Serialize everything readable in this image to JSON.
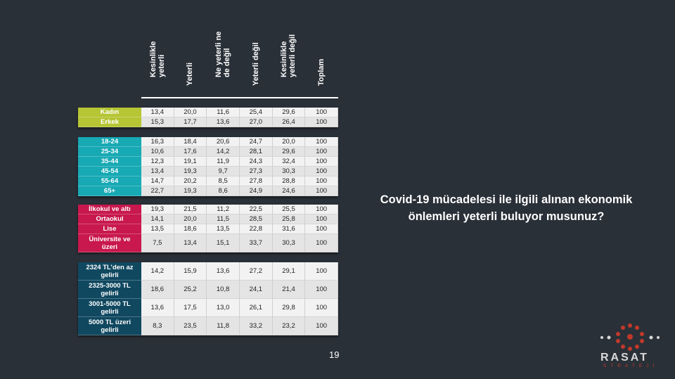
{
  "chart_data": {
    "type": "table",
    "title": "Covid-19 mücadelesi ile ilgili alınan ekonomik önlemleri yeterli buluyor musunuz?",
    "columns": [
      "Kesinlikle\nyeterli",
      "Yeterli",
      "Ne yeterli ne\nde değil",
      "Yeterli değil",
      "Kesinlikle\nyeterli değil",
      "Toplam"
    ],
    "groups": [
      {
        "color": "#b5c534",
        "rows": [
          {
            "label": "Kadın",
            "values": [
              "13,4",
              "20,0",
              "11,6",
              "25,4",
              "29,6",
              "100"
            ]
          },
          {
            "label": "Erkek",
            "values": [
              "15,3",
              "17,7",
              "13,6",
              "27,0",
              "26,4",
              "100"
            ]
          }
        ]
      },
      {
        "color": "#17a9b4",
        "rows": [
          {
            "label": "18-24",
            "values": [
              "16,3",
              "18,4",
              "20,6",
              "24,7",
              "20,0",
              "100"
            ]
          },
          {
            "label": "25-34",
            "values": [
              "10,6",
              "17,6",
              "14,2",
              "28,1",
              "29,6",
              "100"
            ]
          },
          {
            "label": "35-44",
            "values": [
              "12,3",
              "19,1",
              "11,9",
              "24,3",
              "32,4",
              "100"
            ]
          },
          {
            "label": "45-54",
            "values": [
              "13,4",
              "19,3",
              "9,7",
              "27,3",
              "30,3",
              "100"
            ]
          },
          {
            "label": "55-64",
            "values": [
              "14,7",
              "20,2",
              "8,5",
              "27,8",
              "28,8",
              "100"
            ]
          },
          {
            "label": "65+",
            "values": [
              "22,7",
              "19,3",
              "8,6",
              "24,9",
              "24,6",
              "100"
            ]
          }
        ]
      },
      {
        "color": "#c8184e",
        "rows": [
          {
            "label": "İlkokul ve altı",
            "values": [
              "19,3",
              "21,5",
              "11,2",
              "22,5",
              "25,5",
              "100"
            ]
          },
          {
            "label": "Ortaokul",
            "values": [
              "14,1",
              "20,0",
              "11,5",
              "28,5",
              "25,8",
              "100"
            ]
          },
          {
            "label": "Lise",
            "values": [
              "13,5",
              "18,6",
              "13,5",
              "22,8",
              "31,6",
              "100"
            ]
          },
          {
            "label": "Üniversite ve\nüzeri",
            "values": [
              "7,5",
              "13,4",
              "15,1",
              "33,7",
              "30,3",
              "100"
            ]
          }
        ]
      },
      {
        "color": "#104860",
        "rows": [
          {
            "label": "2324 TL’den az\ngelirli",
            "values": [
              "14,2",
              "15,9",
              "13,6",
              "27,2",
              "29,1",
              "100"
            ]
          },
          {
            "label": "2325-3000 TL\ngelirli",
            "values": [
              "18,6",
              "25,2",
              "10,8",
              "24,1",
              "21,4",
              "100"
            ]
          },
          {
            "label": "3001-5000 TL\ngelirli",
            "values": [
              "13,6",
              "17,5",
              "13,0",
              "26,1",
              "29,8",
              "100"
            ]
          },
          {
            "label": "5000 TL üzeri\ngelirli",
            "values": [
              "8,3",
              "23,5",
              "11,8",
              "33,2",
              "23,2",
              "100"
            ]
          }
        ]
      }
    ]
  },
  "question": "Covid-19 mücadelesi ile ilgili alınan ekonomik önlemleri yeterli buluyor musunuz?",
  "page_number": "19",
  "logo": {
    "name": "RASAT",
    "sub": "STRATEJİ"
  }
}
